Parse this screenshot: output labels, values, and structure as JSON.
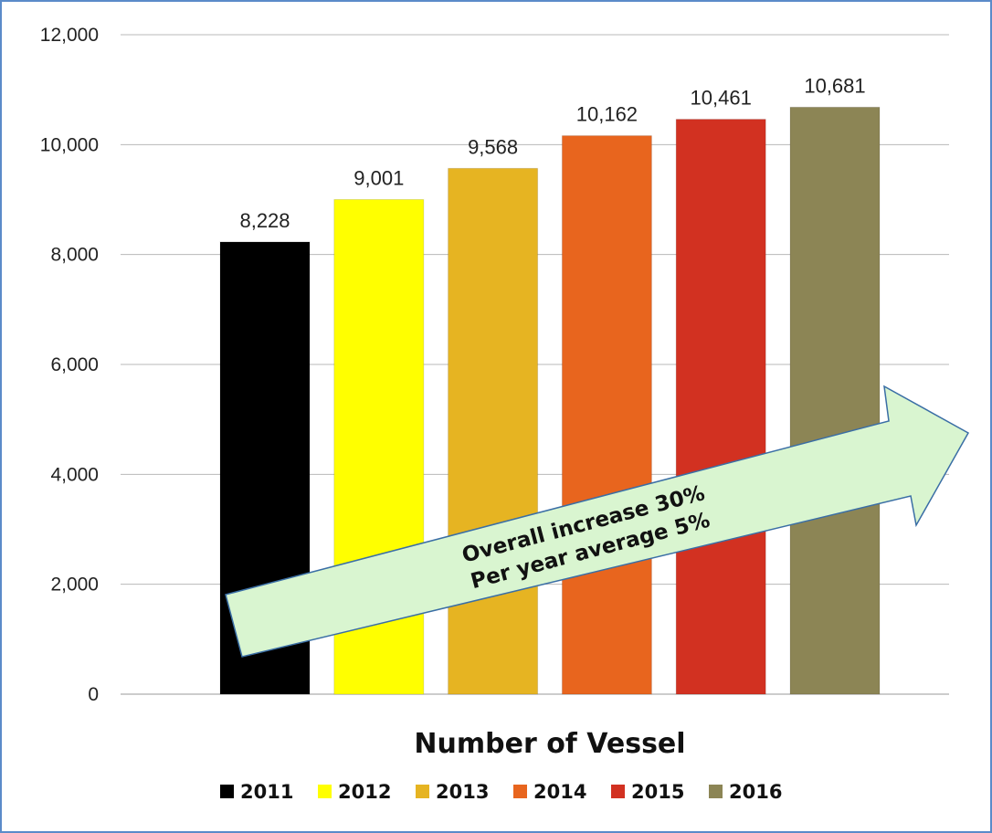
{
  "chart_data": {
    "type": "bar",
    "categories": [
      "2011",
      "2012",
      "2013",
      "2014",
      "2015",
      "2016"
    ],
    "values": [
      8228,
      9001,
      9568,
      10162,
      10461,
      10681
    ],
    "data_labels": [
      "8,228",
      "9,001",
      "9,568",
      "10,162",
      "10,461",
      "10,681"
    ],
    "colors": [
      "#000000",
      "#ffff00",
      "#e6b422",
      "#e8651e",
      "#d23121",
      "#8c8555"
    ],
    "title": "",
    "xlabel": "Number of Vessel",
    "ylabel": "",
    "ylim": [
      0,
      12000
    ],
    "yticks": [
      "0",
      "2,000",
      "4,000",
      "6,000",
      "8,000",
      "10,000",
      "12,000"
    ],
    "grid": true,
    "legend": {
      "placement": "bottom",
      "entries": [
        "2011",
        "2012",
        "2013",
        "2014",
        "2015",
        "2016"
      ]
    },
    "annotation": {
      "line1": "Overall increase 30%",
      "line2": "Per year average 5%",
      "shape": "arrow",
      "fill": "#d9f5d0"
    }
  }
}
